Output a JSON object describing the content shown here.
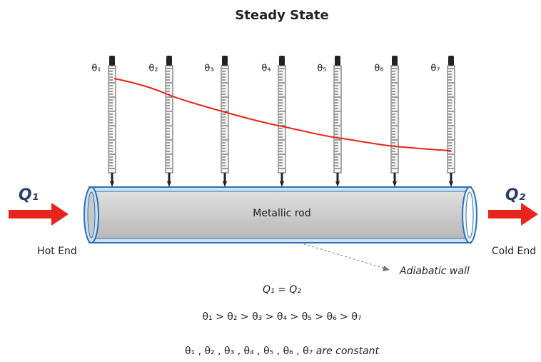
{
  "title": "Steady State",
  "thermometers": [
    {
      "label": "θ₁"
    },
    {
      "label": "θ₂"
    },
    {
      "label": "θ₃"
    },
    {
      "label": "θ₄"
    },
    {
      "label": "θ₅"
    },
    {
      "label": "θ₆"
    },
    {
      "label": "θ₇"
    }
  ],
  "heat_in": "Q₁",
  "heat_out": "Q₂",
  "rod_label": "Metallic rod",
  "hot_end": "Hot End",
  "cold_end": "Cold End",
  "wall_label": "Adiabatic wall",
  "equations": {
    "balance": "Q₁ = Q₂",
    "order": "θ₁ > θ₂ > θ₃ > θ₄ > θ₅ > θ₆ > θ₇",
    "constant_list": "θ₁ , θ₂ , θ₃ , θ₄ , θ₅ , θ₆ , θ₇",
    "constant_note": "are constant"
  }
}
